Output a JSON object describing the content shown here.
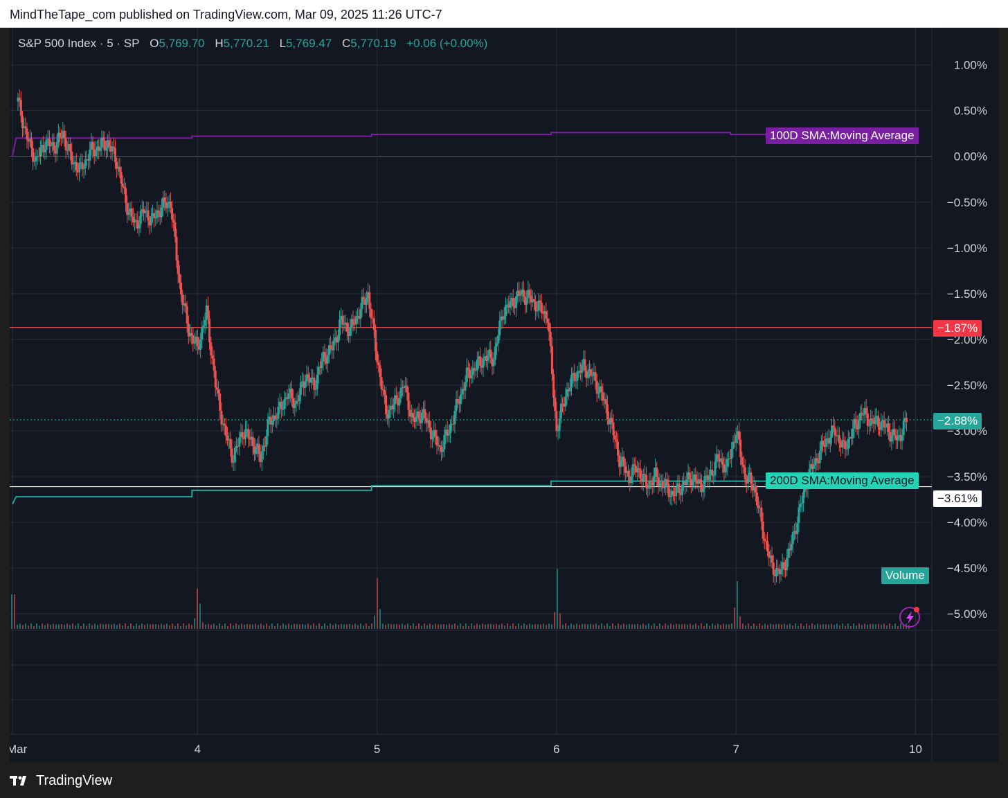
{
  "header": {
    "publish_line": "MindTheTape_com published on TradingView.com, Mar 09, 2025 11:26 UTC-7"
  },
  "symbol": {
    "name": "S&P 500 Index · 5 · SP",
    "open_label": "O",
    "open": "5,769.70",
    "high_label": "H",
    "high": "5,770.21",
    "low_label": "L",
    "low": "5,769.47",
    "close_label": "C",
    "close": "5,770.19",
    "change": "+0.06 (+0.00%)"
  },
  "labels": {
    "sma100": "100D SMA:Moving Average",
    "sma200": "200D SMA:Moving Average",
    "volume": "Volume",
    "red_level": "−1.87%",
    "current_level": "−2.88%",
    "white_level": "−3.61%"
  },
  "footer": {
    "brand": "TradingView"
  },
  "colors": {
    "up": "#26a69a",
    "down": "#ef5350",
    "sma100": "#7b1fa2",
    "sma200": "#26a69a",
    "background": "#131722",
    "grid": "#2a2e39"
  },
  "chart_data": {
    "type": "line",
    "title": "S&P 500 Index · 5 · SP",
    "y_axis": {
      "ticks": [
        1.0,
        0.5,
        0.0,
        -0.5,
        -1.0,
        -1.5,
        -2.0,
        -2.5,
        -3.0,
        -3.5,
        -4.0,
        -4.5,
        -5.0
      ],
      "tick_labels": [
        "1.00%",
        "0.50%",
        "0.00%",
        "−0.50%",
        "−1.00%",
        "−1.50%",
        "−2.00%",
        "−2.50%",
        "−3.00%",
        "−3.50%",
        "−4.00%",
        "−4.50%",
        "−5.00%"
      ],
      "range": [
        -5.1,
        1.25
      ]
    },
    "x_axis": {
      "tick_labels": [
        "Mar",
        "4",
        "5",
        "6",
        "7",
        "10"
      ],
      "tick_positions": [
        0,
        1,
        2,
        3,
        4,
        5
      ],
      "range": [
        0,
        5.1
      ]
    },
    "grid": true,
    "series": [
      {
        "name": "S&P 500 Index",
        "style": "candlestick",
        "x": [
          0.0,
          0.05,
          0.1,
          0.15,
          0.2,
          0.25,
          0.3,
          0.35,
          0.4,
          0.45,
          0.5,
          0.55,
          0.6,
          0.65,
          0.7,
          0.75,
          0.8,
          0.85,
          0.9,
          0.95,
          1.0,
          1.05,
          1.1,
          1.15,
          1.2,
          1.25,
          1.3,
          1.35,
          1.4,
          1.45,
          1.5,
          1.55,
          1.6,
          1.65,
          1.7,
          1.75,
          1.8,
          1.85,
          1.9,
          1.95,
          2.0,
          2.05,
          2.1,
          2.15,
          2.2,
          2.25,
          2.3,
          2.35,
          2.4,
          2.45,
          2.5,
          2.55,
          2.6,
          2.65,
          2.7,
          2.75,
          2.8,
          2.85,
          2.9,
          2.95,
          3.0,
          3.05,
          3.1,
          3.15,
          3.2,
          3.25,
          3.3,
          3.35,
          3.4,
          3.45,
          3.5,
          3.55,
          3.6,
          3.65,
          3.7,
          3.75,
          3.8,
          3.85,
          3.9,
          3.95,
          4.0,
          4.05,
          4.1,
          4.15,
          4.2,
          4.25,
          4.3,
          4.35,
          4.4,
          4.45,
          4.5,
          4.55,
          4.6,
          4.65,
          4.7,
          4.75,
          4.8,
          4.85,
          4.9,
          4.95
        ],
        "y": [
          0.6,
          0.2,
          -0.05,
          0.15,
          0.1,
          0.25,
          -0.05,
          -0.15,
          0.05,
          0.1,
          0.15,
          -0.05,
          -0.5,
          -0.75,
          -0.6,
          -0.7,
          -0.55,
          -0.5,
          -1.4,
          -1.9,
          -2.1,
          -1.7,
          -2.5,
          -3.0,
          -3.3,
          -3.0,
          -3.1,
          -3.3,
          -2.9,
          -2.8,
          -2.6,
          -2.7,
          -2.4,
          -2.5,
          -2.2,
          -2.1,
          -1.8,
          -1.9,
          -1.7,
          -1.5,
          -2.2,
          -2.8,
          -2.7,
          -2.5,
          -2.9,
          -2.8,
          -3.0,
          -3.2,
          -3.0,
          -2.7,
          -2.4,
          -2.3,
          -2.2,
          -2.2,
          -1.7,
          -1.6,
          -1.5,
          -1.55,
          -1.65,
          -1.75,
          -3.0,
          -2.6,
          -2.4,
          -2.3,
          -2.4,
          -2.6,
          -2.9,
          -3.3,
          -3.5,
          -3.4,
          -3.6,
          -3.5,
          -3.6,
          -3.7,
          -3.6,
          -3.5,
          -3.6,
          -3.5,
          -3.3,
          -3.4,
          -3.0,
          -3.5,
          -3.6,
          -4.1,
          -4.5,
          -4.55,
          -4.3,
          -3.9,
          -3.5,
          -3.3,
          -3.1,
          -3.0,
          -3.2,
          -3.0,
          -2.8,
          -2.9,
          -2.9,
          -3.0,
          -3.1,
          -2.88
        ]
      },
      {
        "name": "100D SMA",
        "style": "line",
        "x": [
          0.0,
          0.02,
          1.0,
          1.0,
          2.0,
          2.0,
          3.0,
          3.0,
          4.0,
          4.0,
          4.2
        ],
        "y": [
          0.0,
          0.2,
          0.2,
          0.22,
          0.22,
          0.24,
          0.24,
          0.26,
          0.26,
          0.24,
          0.24
        ]
      },
      {
        "name": "200D SMA",
        "style": "line",
        "x": [
          0.0,
          0.02,
          1.0,
          1.0,
          2.0,
          2.0,
          3.0,
          3.0,
          4.2
        ],
        "y": [
          -3.8,
          -3.72,
          -3.72,
          -3.65,
          -3.65,
          -3.6,
          -3.6,
          -3.55,
          -3.55
        ]
      }
    ],
    "levels": [
      {
        "value": -1.87,
        "color": "#ef5350"
      },
      {
        "value": -2.88,
        "color": "#26a69a",
        "style": "dotted"
      },
      {
        "value": -3.61,
        "color": "#ffffff"
      }
    ],
    "volume_spikes": [
      1.0,
      2.0,
      3.0,
      4.0
    ]
  }
}
